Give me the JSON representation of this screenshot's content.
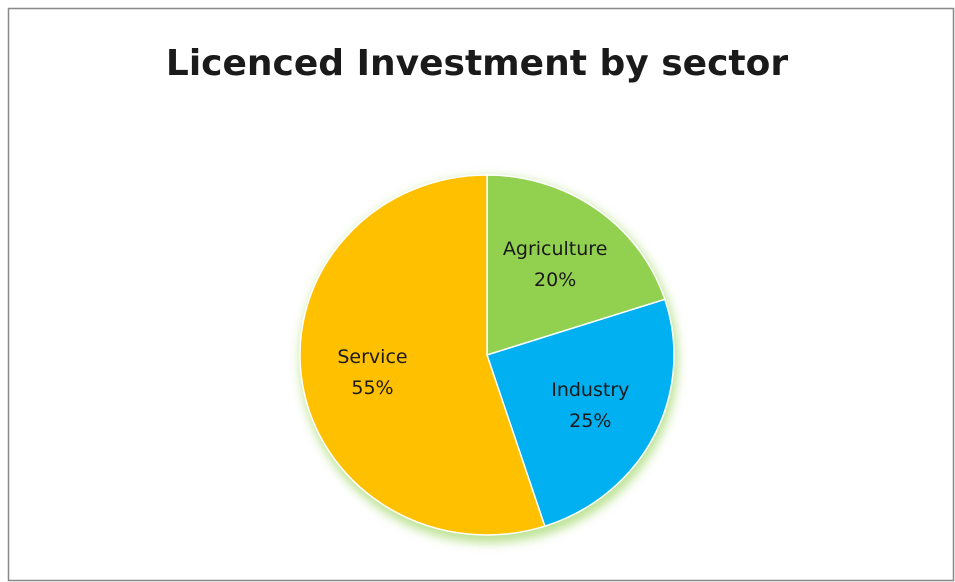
{
  "chart_data": {
    "type": "pie",
    "title": "Licenced Investment by sector",
    "categories": [
      "Agriculture",
      "Industry",
      "Service"
    ],
    "values": [
      20,
      25,
      55
    ],
    "value_labels": [
      "20%",
      "25%",
      "55%"
    ],
    "colors": [
      "#92d050",
      "#00b0f0",
      "#ffc000"
    ]
  }
}
